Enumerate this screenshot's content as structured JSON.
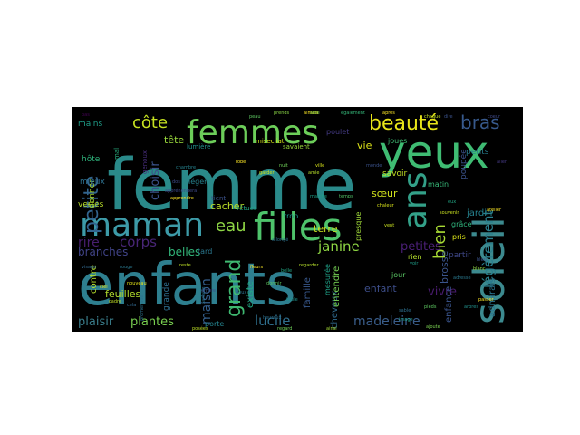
{
  "wordcloud": {
    "background": "#000000",
    "words": [
      {
        "text": "femme",
        "color": "#2a8a8a"
      },
      {
        "text": "enfants",
        "color": "#2e7f8f"
      },
      {
        "text": "yeux",
        "color": "#3fbc73"
      },
      {
        "text": "femmes",
        "color": "#6ccd59"
      },
      {
        "text": "filles",
        "color": "#4ec36b"
      },
      {
        "text": "maman",
        "color": "#3d9ba8"
      },
      {
        "text": "soleil",
        "color": "#3c8a8f"
      },
      {
        "text": "ans",
        "color": "#33a088"
      },
      {
        "text": "beauté",
        "color": "#e7e419"
      },
      {
        "text": "bras",
        "color": "#37598c"
      },
      {
        "text": "petite",
        "color": "#32648e"
      },
      {
        "text": "côte",
        "color": "#c5e021"
      },
      {
        "text": "eau",
        "color": "#8ed645"
      },
      {
        "text": "bien",
        "color": "#a8db34"
      },
      {
        "text": "légèrement",
        "color": "#2b7f8e"
      },
      {
        "text": "corps",
        "color": "#482576"
      },
      {
        "text": "rire",
        "color": "#481e6f"
      },
      {
        "text": "grand",
        "color": "#3fb971"
      },
      {
        "text": "petites",
        "color": "#4a1f76"
      },
      {
        "text": "janine",
        "color": "#8fd744"
      },
      {
        "text": "vivre",
        "color": "#481b6d"
      },
      {
        "text": "madeleine",
        "color": "#3a5e8c"
      },
      {
        "text": "lucile",
        "color": "#2f6f8e"
      },
      {
        "text": "plaisir",
        "color": "#3a7e8c"
      },
      {
        "text": "plantes",
        "color": "#7ad151"
      },
      {
        "text": "maison",
        "color": "#355f8d"
      },
      {
        "text": "choisir",
        "color": "#3b528b"
      },
      {
        "text": "branches",
        "color": "#404387"
      },
      {
        "text": "belles",
        "color": "#32b67a"
      },
      {
        "text": "tête",
        "color": "#9ad93c"
      },
      {
        "text": "vie",
        "color": "#dde318"
      },
      {
        "text": "sœur",
        "color": "#d0e11c"
      },
      {
        "text": "cacher",
        "color": "#bddf26"
      },
      {
        "text": "terre",
        "color": "#c8e020"
      },
      {
        "text": "enfant",
        "color": "#3d4e8a"
      },
      {
        "text": "brosse",
        "color": "#3a548c"
      },
      {
        "text": "feuilles",
        "color": "#b2dd2d"
      },
      {
        "text": "contre",
        "color": "#b5de2b"
      },
      {
        "text": "cheveux",
        "color": "#306a8e"
      },
      {
        "text": "entendre",
        "color": "#75d054"
      },
      {
        "text": "enfance",
        "color": "#3a548c"
      },
      {
        "text": "admirais",
        "color": "#2b748e"
      },
      {
        "text": "famille",
        "color": "#38588c"
      },
      {
        "text": "existe",
        "color": "#22a884"
      },
      {
        "text": "hôtel",
        "color": "#2fb47c"
      },
      {
        "text": "mains",
        "color": "#1f9e89"
      },
      {
        "text": "jardin",
        "color": "#26818e"
      },
      {
        "text": "partir",
        "color": "#3f4889"
      },
      {
        "text": "pris",
        "color": "#d8e219"
      },
      {
        "text": "donner",
        "color": "#aadc32"
      },
      {
        "text": "vertes",
        "color": "#b8de29"
      },
      {
        "text": "mieux",
        "color": "#2d708e"
      },
      {
        "text": "savoir",
        "color": "#c2df23"
      },
      {
        "text": "matin",
        "color": "#37b878"
      },
      {
        "text": "jour",
        "color": "#5ac864"
      },
      {
        "text": "rien",
        "color": "#b5de2b"
      },
      {
        "text": "joues",
        "color": "#3fbc73"
      },
      {
        "text": "tard",
        "color": "#2a778e"
      },
      {
        "text": "grande",
        "color": "#2e6e8e"
      },
      {
        "text": "porte",
        "color": "#25838e"
      },
      {
        "text": "trop",
        "color": "#1f948c"
      },
      {
        "text": "presque",
        "color": "#a0da39"
      },
      {
        "text": "mesurée",
        "color": "#1fa187"
      },
      {
        "text": "petits",
        "color": "#287d8e"
      },
      {
        "text": "poulet",
        "color": "#443a83"
      },
      {
        "text": "poupée",
        "color": "#3b528b"
      },
      {
        "text": "grâce",
        "color": "#2fb47c"
      },
      {
        "text": "léger",
        "color": "#26828e"
      },
      {
        "text": "vêtues",
        "color": "#22a884"
      },
      {
        "text": "tient",
        "color": "#3b528b"
      },
      {
        "text": "lumière",
        "color": "#20928c"
      },
      {
        "text": "misecliat",
        "color": "#d5e21a"
      },
      {
        "text": "savaient",
        "color": "#9bd93c"
      },
      {
        "text": "genoux",
        "color": "#472d7b"
      },
      {
        "text": "mal",
        "color": "#29af7f"
      },
      {
        "text": "cadre",
        "color": "#c0df25"
      },
      {
        "text": "parfaite",
        "color": "#2c738e"
      },
      {
        "text": "également",
        "color": "#35b779"
      },
      {
        "text": "aimais",
        "color": "#fde725"
      },
      {
        "text": "prends",
        "color": "#8bd646"
      },
      {
        "text": "promenade",
        "color": "#2c728e"
      },
      {
        "text": "robe",
        "color": "#fde725"
      },
      {
        "text": "nuit",
        "color": "#6ece58"
      },
      {
        "text": "peau",
        "color": "#5ec962"
      },
      {
        "text": "dire",
        "color": "#3b528b"
      },
      {
        "text": "pas",
        "color": "#440154"
      },
      {
        "text": "chaque",
        "color": "#c2df23"
      },
      {
        "text": "coeur",
        "color": "#3e4989"
      },
      {
        "text": "amie",
        "color": "#b5de2b"
      },
      {
        "text": "belle",
        "color": "#22a884"
      },
      {
        "text": "heureux",
        "color": "#2d708e"
      },
      {
        "text": "souvenir",
        "color": "#c8e020"
      },
      {
        "text": "voir",
        "color": "#1f9e89"
      },
      {
        "text": "posées",
        "color": "#bddf26"
      },
      {
        "text": "aller",
        "color": "#443983"
      },
      {
        "text": "regard",
        "color": "#6ece58"
      },
      {
        "text": "adresse",
        "color": "#2a788e"
      },
      {
        "text": "passer",
        "color": "#fde725"
      },
      {
        "text": "ajoute",
        "color": "#7ad151"
      },
      {
        "text": "arbres",
        "color": "#21918c"
      },
      {
        "text": "ciel",
        "color": "#e5e419"
      },
      {
        "text": "dos",
        "color": "#3e4c8a"
      },
      {
        "text": "blanc",
        "color": "#90d743"
      },
      {
        "text": "atelier",
        "color": "#fde725"
      },
      {
        "text": "bleu",
        "color": "#3b528b"
      },
      {
        "text": "image",
        "color": "#1fa188"
      },
      {
        "text": "visage",
        "color": "#31688e"
      },
      {
        "text": "nouveau",
        "color": "#e5e419"
      },
      {
        "text": "table",
        "color": "#21918c"
      },
      {
        "text": "chambre",
        "color": "#26828e"
      },
      {
        "text": "dormir",
        "color": "#5ec962"
      },
      {
        "text": "ville",
        "color": "#d8e219"
      },
      {
        "text": "aide",
        "color": "#84d44b"
      },
      {
        "text": "après",
        "color": "#fde725"
      },
      {
        "text": "reste",
        "color": "#bddf26"
      },
      {
        "text": "cela",
        "color": "#31688e"
      },
      {
        "text": "ainsi",
        "color": "#a5db36"
      },
      {
        "text": "sable",
        "color": "#2d708e"
      },
      {
        "text": "eux",
        "color": "#21a685"
      },
      {
        "text": "appréhendera",
        "color": "#3e4a89"
      },
      {
        "text": "regarder",
        "color": "#b5de2b"
      },
      {
        "text": "apprendre",
        "color": "#fde725"
      },
      {
        "text": "ombre",
        "color": "#3b528b"
      },
      {
        "text": "doux",
        "color": "#2c728e"
      },
      {
        "text": "rouge",
        "color": "#2a788e"
      },
      {
        "text": "temps",
        "color": "#52c569"
      },
      {
        "text": "garder",
        "color": "#d0e11c"
      },
      {
        "text": "marche",
        "color": "#1fa188"
      },
      {
        "text": "vent",
        "color": "#c8e020"
      },
      {
        "text": "pieds",
        "color": "#5ec962"
      },
      {
        "text": "fleurs",
        "color": "#fde725"
      },
      {
        "text": "chaleur",
        "color": "#d8e219"
      },
      {
        "text": "allongé",
        "color": "#2c728e"
      },
      {
        "text": "monde",
        "color": "#3b528b"
      }
    ]
  }
}
